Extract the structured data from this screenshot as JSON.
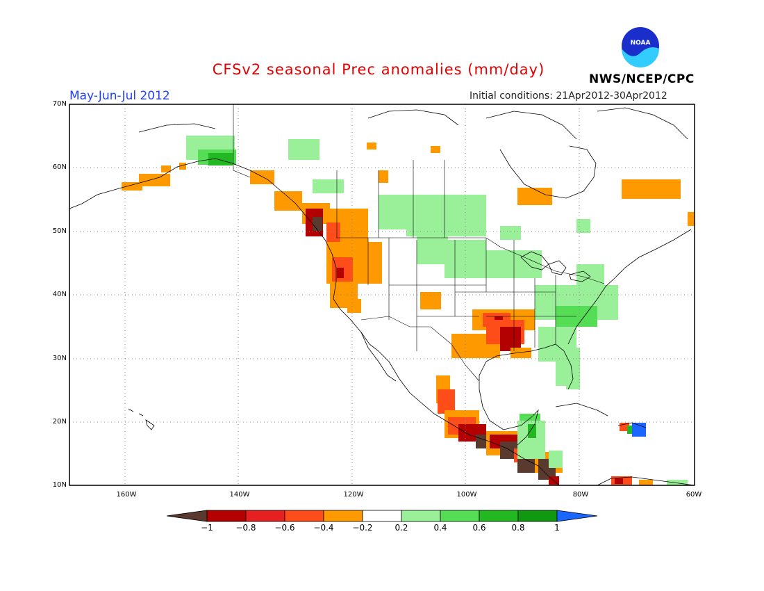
{
  "header": {
    "title": "CFSv2 seasonal Prec anomalies (mm/day)",
    "season": "May-Jun-Jul 2012",
    "initial_conditions": "Initial conditions: 21Apr2012-30Apr2012",
    "agency": "NWS/NCEP/CPC",
    "logo": "noaa-logo"
  },
  "map": {
    "lat_labels": [
      "70N",
      "60N",
      "50N",
      "40N",
      "30N",
      "20N",
      "10N"
    ],
    "lon_labels": [
      "160W",
      "140W",
      "120W",
      "100W",
      "80W",
      "60W"
    ],
    "lon_range": [
      -170,
      -60
    ],
    "lat_range": [
      10,
      70
    ]
  },
  "colorbar": {
    "ticks": [
      "−1",
      "−0.8",
      "−0.6",
      "−0.4",
      "−0.2",
      "0.2",
      "0.4",
      "0.6",
      "0.8",
      "1"
    ],
    "colors": [
      "#5a3a2e",
      "#b30000",
      "#e62020",
      "#ff4d1a",
      "#ff9900",
      "#ffffff",
      "#99f099",
      "#55dd55",
      "#22b822",
      "#109910",
      "#1a66ff"
    ]
  }
}
